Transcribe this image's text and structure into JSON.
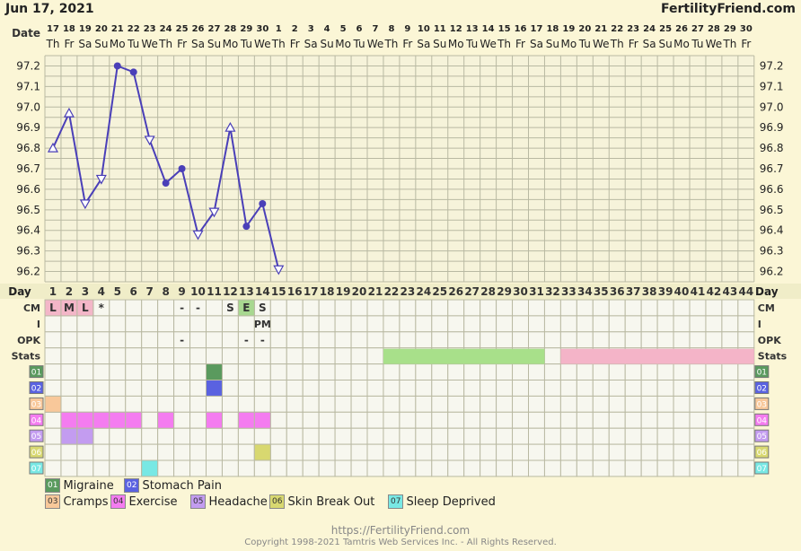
{
  "header": {
    "date": "Jun 17, 2021",
    "brand": "FertilityFriend.com"
  },
  "labels": {
    "date": "Date",
    "day": "Day",
    "cm": "CM",
    "i": "I",
    "opk": "OPK",
    "stats": "Stats"
  },
  "chart_data": {
    "type": "line",
    "y_ticks": [
      "97.2",
      "97.1",
      "97.0",
      "96.9",
      "96.8",
      "96.7",
      "96.6",
      "96.5",
      "96.4",
      "96.3",
      "96.2"
    ],
    "ylim": [
      96.15,
      97.25
    ],
    "date_days": [
      "17",
      "18",
      "19",
      "20",
      "21",
      "22",
      "23",
      "24",
      "25",
      "26",
      "27",
      "28",
      "29",
      "30",
      "1",
      "2",
      "3",
      "4",
      "5",
      "6",
      "7",
      "8",
      "9",
      "10",
      "11",
      "12",
      "13",
      "14",
      "15",
      "16",
      "17",
      "18",
      "19",
      "20",
      "21",
      "22",
      "23",
      "24",
      "25",
      "26",
      "27",
      "28",
      "29",
      "30"
    ],
    "date_weekdays": [
      "Th",
      "Fr",
      "Sa",
      "Su",
      "Mo",
      "Tu",
      "We",
      "Th",
      "Fr",
      "Sa",
      "Su",
      "Mo",
      "Tu",
      "We",
      "Th",
      "Fr",
      "Sa",
      "Su",
      "Mo",
      "Tu",
      "We",
      "Th",
      "Fr",
      "Sa",
      "Su",
      "Mo",
      "Tu",
      "We",
      "Th",
      "Fr",
      "Sa",
      "Su",
      "Mo",
      "Tu",
      "We",
      "Th",
      "Fr",
      "Sa",
      "Su",
      "Mo",
      "Tu",
      "We",
      "Th",
      "Fr"
    ],
    "cycle_days": [
      "1",
      "2",
      "3",
      "4",
      "5",
      "6",
      "7",
      "8",
      "9",
      "10",
      "11",
      "12",
      "13",
      "14",
      "15",
      "16",
      "17",
      "18",
      "19",
      "20",
      "21",
      "22",
      "23",
      "24",
      "25",
      "26",
      "27",
      "28",
      "29",
      "30",
      "31",
      "32",
      "33",
      "34",
      "35",
      "36",
      "37",
      "38",
      "39",
      "40",
      "41",
      "42",
      "43",
      "44"
    ],
    "series": [
      {
        "temps": [
          96.8,
          96.97,
          96.53,
          96.65,
          97.2,
          97.17,
          96.84,
          96.63,
          96.7,
          96.38,
          96.49,
          96.9,
          96.42,
          96.53,
          96.21
        ],
        "markers": [
          "up",
          "up",
          "down",
          "down",
          "dot",
          "dot",
          "down",
          "dot",
          "dot",
          "down",
          "down",
          "up",
          "dot",
          "dot",
          "down"
        ]
      }
    ],
    "cm_row": [
      {
        "day": 1,
        "text": "L",
        "bg": "#f3b6c8"
      },
      {
        "day": 2,
        "text": "M",
        "bg": "#f3b6c8"
      },
      {
        "day": 3,
        "text": "L",
        "bg": "#f3b6c8"
      },
      {
        "day": 4,
        "text": "*",
        "bg": ""
      },
      {
        "day": 9,
        "text": "-",
        "bg": ""
      },
      {
        "day": 10,
        "text": "-",
        "bg": ""
      },
      {
        "day": 12,
        "text": "S",
        "bg": ""
      },
      {
        "day": 13,
        "text": "E",
        "bg": "#a8d890"
      },
      {
        "day": 14,
        "text": "S",
        "bg": ""
      }
    ],
    "i_row": [
      {
        "day": 14,
        "text": "PM"
      }
    ],
    "opk_row": [
      {
        "day": 9,
        "text": "-"
      },
      {
        "day": 13,
        "text": "-"
      },
      {
        "day": 14,
        "text": "-"
      }
    ],
    "stats_bars": [
      {
        "from": 22,
        "to": 31,
        "color": "#a8e08a"
      },
      {
        "from": 33,
        "to": 44,
        "color": "#f4b4c8"
      }
    ],
    "symptom_rows": [
      {
        "code": "01",
        "color": "#5a9a5e",
        "days": [
          11
        ]
      },
      {
        "code": "02",
        "color": "#5a62e0",
        "days": [
          11
        ]
      },
      {
        "code": "03",
        "color": "#f8c89a",
        "days": [
          1
        ]
      },
      {
        "code": "04",
        "color": "#f47cf0",
        "days": [
          2,
          3,
          4,
          5,
          6,
          8,
          11,
          13,
          14
        ]
      },
      {
        "code": "05",
        "color": "#c39cf0",
        "days": [
          2,
          3
        ]
      },
      {
        "code": "06",
        "color": "#d8d870",
        "days": [
          14
        ]
      },
      {
        "code": "07",
        "color": "#78e8e4",
        "days": [
          7
        ]
      }
    ]
  },
  "legend": [
    {
      "code": "01",
      "label": "Migraine",
      "color": "#5a9a5e",
      "fg": "#ffffff"
    },
    {
      "code": "02",
      "label": "Stomach Pain",
      "color": "#5a62e0",
      "fg": "#ffffff"
    },
    {
      "code": "03",
      "label": "Cramps",
      "color": "#f8c89a",
      "fg": "#333333"
    },
    {
      "code": "04",
      "label": "Exercise",
      "color": "#f47cf0",
      "fg": "#333333"
    },
    {
      "code": "05",
      "label": "Headache",
      "color": "#c39cf0",
      "fg": "#333333"
    },
    {
      "code": "06",
      "label": "Skin Break Out",
      "color": "#d8d870",
      "fg": "#333333"
    },
    {
      "code": "07",
      "label": "Sleep Deprived",
      "color": "#78e8e4",
      "fg": "#333333"
    }
  ],
  "footer": {
    "url": "https://FertilityFriend.com",
    "copyright": "Copyright 1998-2021 Tamtris Web Services Inc. - All Rights Reserved."
  },
  "colors": {
    "line": "#4a3fb8",
    "grid": "#b9b9a2",
    "cell_bg": "#f7f7ef",
    "label_col": "#6060d0",
    "chart_bg": "#f6f3da"
  }
}
